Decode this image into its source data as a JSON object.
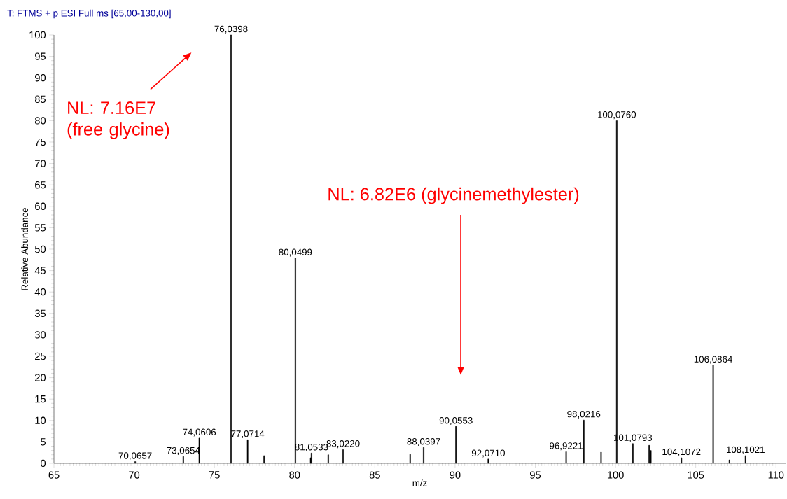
{
  "chart_data": {
    "type": "bar",
    "title": "T: FTMS + p ESI Full ms [65,00-130,00]",
    "xlabel": "m/z",
    "ylabel": "Relative Abundance",
    "x": [
      70.0657,
      73.0654,
      74.0606,
      76.0398,
      77.0714,
      78.1,
      80.0499,
      81.0,
      81.0533,
      82.1,
      83.022,
      87.2,
      88.0397,
      90.0553,
      92.071,
      96.9221,
      98.0216,
      99.1,
      100.076,
      101.0793,
      102.1,
      102.2,
      104.1072,
      106.0864,
      107.1,
      108.1021
    ],
    "values": [
      0.4,
      1.6,
      5.9,
      100,
      5.5,
      1.8,
      47.9,
      1.3,
      2.4,
      2.0,
      3.2,
      2.1,
      3.7,
      8.6,
      1.0,
      2.7,
      10.1,
      2.6,
      80,
      4.6,
      4.2,
      3.0,
      1.3,
      22.9,
      0.8,
      1.8
    ],
    "value_labels": [
      "70,0657",
      "73,0654",
      "74,0606",
      "76,0398",
      "77,0714",
      null,
      "80,0499",
      null,
      "81,0533",
      null,
      "83,0220",
      null,
      "88,0397",
      "90,0553",
      "92,0710",
      "96,9221",
      "98,0216",
      null,
      "100,0760",
      "101,0793",
      null,
      null,
      "104,1072",
      "106,0864",
      null,
      "108,1021"
    ],
    "color": "#000000",
    "xlim": [
      65,
      110.6
    ],
    "xticks": [
      65,
      70,
      75,
      80,
      85,
      90,
      95,
      100,
      105,
      110
    ],
    "ylim": [
      0,
      100
    ],
    "yticks": [
      0,
      5,
      10,
      15,
      20,
      25,
      30,
      35,
      40,
      45,
      50,
      55,
      60,
      65,
      70,
      75,
      80,
      85,
      90,
      95,
      100
    ],
    "annotations": [
      "NL: 7.16E7 (free glycine)",
      "NL: 6.82E6 (glycinemethylester)"
    ]
  }
}
